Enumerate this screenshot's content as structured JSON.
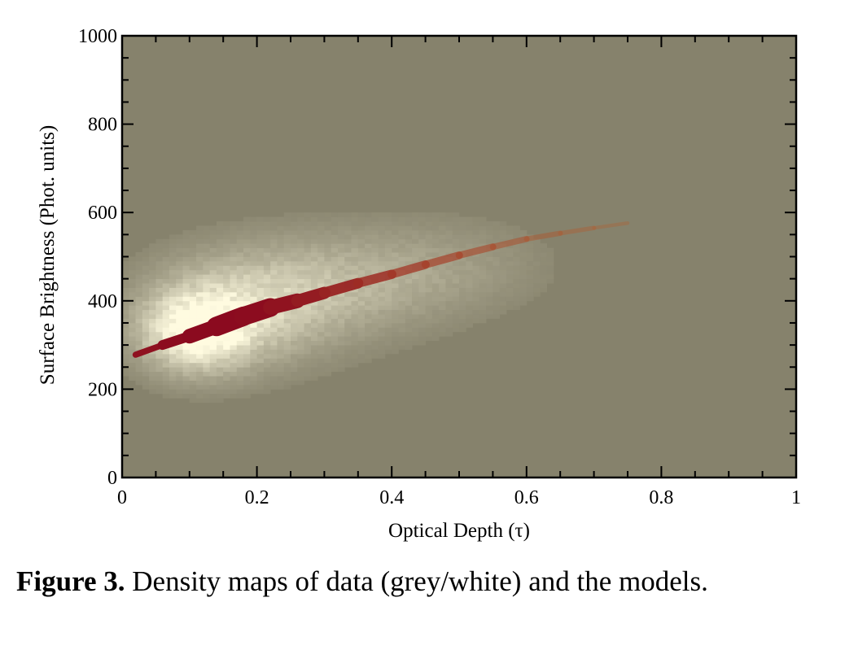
{
  "chart_data": {
    "type": "heatmap",
    "title": "",
    "xlabel": "Optical Depth (τ)",
    "ylabel": "Surface Brightness (Phot. units)",
    "xlim": [
      0,
      1
    ],
    "ylim": [
      0,
      1000
    ],
    "x_ticks": [
      "0",
      "0.2",
      "0.4",
      "0.6",
      "0.8",
      "1"
    ],
    "y_ticks": [
      "0",
      "200",
      "400",
      "600",
      "800",
      "1000"
    ],
    "grid": false,
    "colors": {
      "background": "#86826c",
      "data_density": "#fffbe0",
      "model_density": "#8b0a1f",
      "model_fade": "#c6782f"
    },
    "series": [
      {
        "kind": "data density (grey/white)",
        "blobs": [
          {
            "x": 0.11,
            "y": 330,
            "sx": 0.05,
            "sy": 55,
            "peak": 1.0
          },
          {
            "x": 0.16,
            "y": 375,
            "sx": 0.08,
            "sy": 75,
            "peak": 0.55
          },
          {
            "x": 0.26,
            "y": 420,
            "sx": 0.09,
            "sy": 75,
            "peak": 0.3
          },
          {
            "x": 0.38,
            "y": 450,
            "sx": 0.09,
            "sy": 70,
            "peak": 0.18
          },
          {
            "x": 0.5,
            "y": 480,
            "sx": 0.09,
            "sy": 65,
            "peak": 0.1
          }
        ]
      },
      {
        "kind": "model ridge",
        "ridge": [
          {
            "x": 0.02,
            "y": 278,
            "w": 5,
            "i": 0.9
          },
          {
            "x": 0.06,
            "y": 300,
            "w": 10,
            "i": 0.95
          },
          {
            "x": 0.1,
            "y": 320,
            "w": 14,
            "i": 1.0
          },
          {
            "x": 0.14,
            "y": 342,
            "w": 22,
            "i": 1.0
          },
          {
            "x": 0.18,
            "y": 365,
            "w": 26,
            "i": 1.0
          },
          {
            "x": 0.22,
            "y": 385,
            "w": 20,
            "i": 0.95
          },
          {
            "x": 0.26,
            "y": 400,
            "w": 16,
            "i": 0.85
          },
          {
            "x": 0.3,
            "y": 418,
            "w": 14,
            "i": 0.75
          },
          {
            "x": 0.35,
            "y": 440,
            "w": 12,
            "i": 0.65
          },
          {
            "x": 0.4,
            "y": 460,
            "w": 11,
            "i": 0.55
          },
          {
            "x": 0.45,
            "y": 482,
            "w": 10,
            "i": 0.45
          },
          {
            "x": 0.5,
            "y": 503,
            "w": 9,
            "i": 0.38
          },
          {
            "x": 0.55,
            "y": 522,
            "w": 8,
            "i": 0.3
          },
          {
            "x": 0.6,
            "y": 540,
            "w": 7,
            "i": 0.22
          },
          {
            "x": 0.65,
            "y": 553,
            "w": 6,
            "i": 0.15
          },
          {
            "x": 0.7,
            "y": 565,
            "w": 5,
            "i": 0.09
          },
          {
            "x": 0.75,
            "y": 576,
            "w": 4,
            "i": 0.04
          }
        ]
      }
    ]
  },
  "caption": {
    "label": "Figure 3.",
    "text": "Density maps of data (grey/white) and the models."
  }
}
